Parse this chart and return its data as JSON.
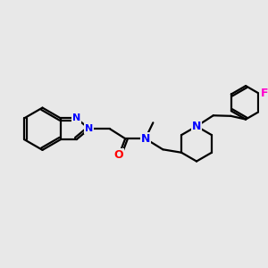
{
  "bg_color": "#e8e8e8",
  "bond_color": "#000000",
  "n_color": "#0000ff",
  "o_color": "#ff0000",
  "f_color": "#ff00cc",
  "line_width": 1.6,
  "xlim": [
    0,
    10
  ],
  "ylim": [
    0,
    10
  ]
}
